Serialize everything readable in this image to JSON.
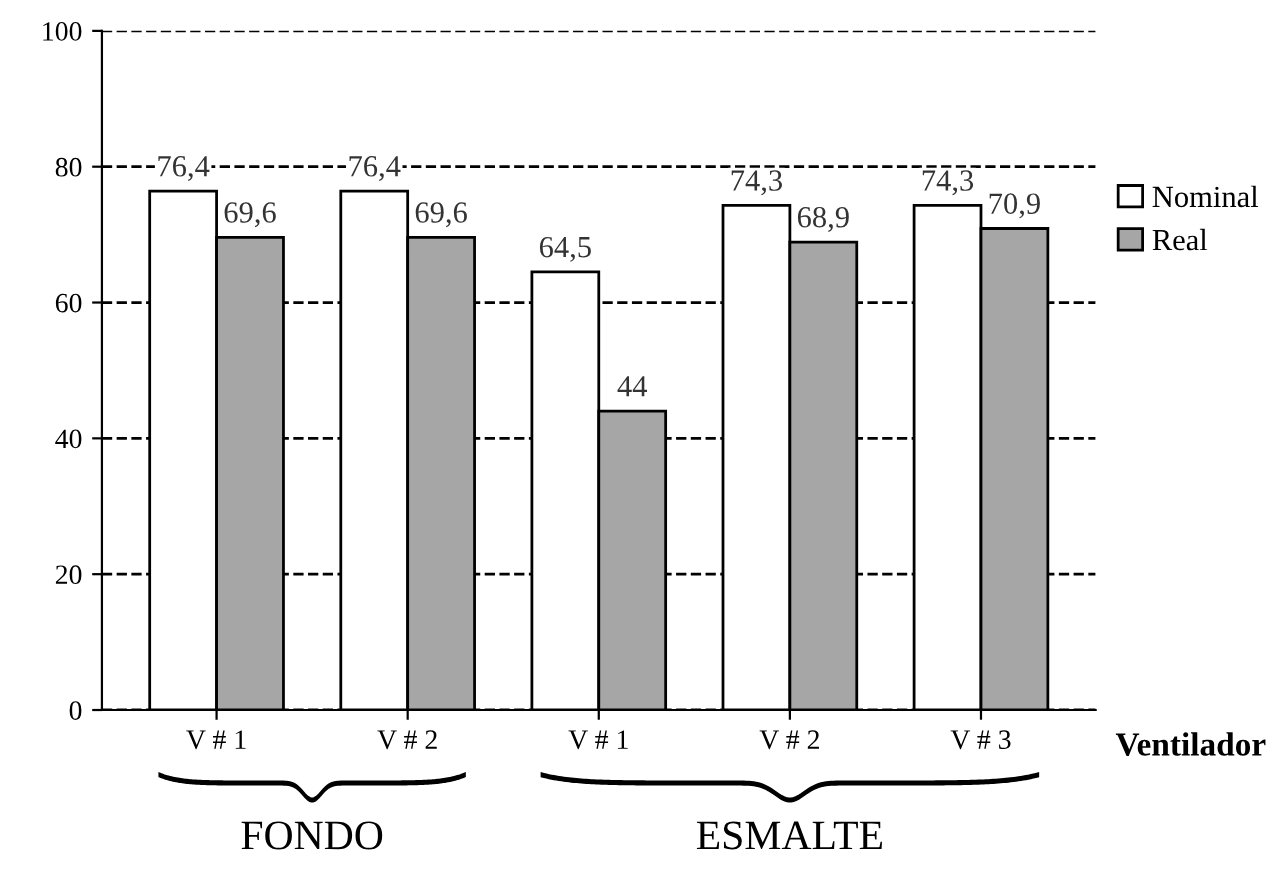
{
  "chart_data": {
    "type": "bar",
    "categories": [
      "V # 1",
      "V # 2",
      "V # 1",
      "V # 2",
      "V # 3"
    ],
    "xlabel": "Ventilador",
    "series": [
      {
        "name": "Nominal",
        "color": "#ffffff",
        "values": [
          76.4,
          76.4,
          64.5,
          74.3,
          74.3
        ],
        "value_labels": [
          "76,4",
          "76,4",
          "64,5",
          "74,3",
          "74,3"
        ]
      },
      {
        "name": "Real",
        "color": "#a6a6a6",
        "values": [
          69.6,
          69.6,
          44,
          68.9,
          70.9
        ],
        "value_labels": [
          "69,6",
          "69,6",
          "44",
          "68,9",
          "70,9"
        ]
      }
    ],
    "ylim": [
      0,
      100
    ],
    "yticks": [
      0,
      20,
      40,
      60,
      80,
      100
    ],
    "grid": "y",
    "legend": "right",
    "annotations": [
      "FONDO",
      "ESMALTE"
    ]
  }
}
